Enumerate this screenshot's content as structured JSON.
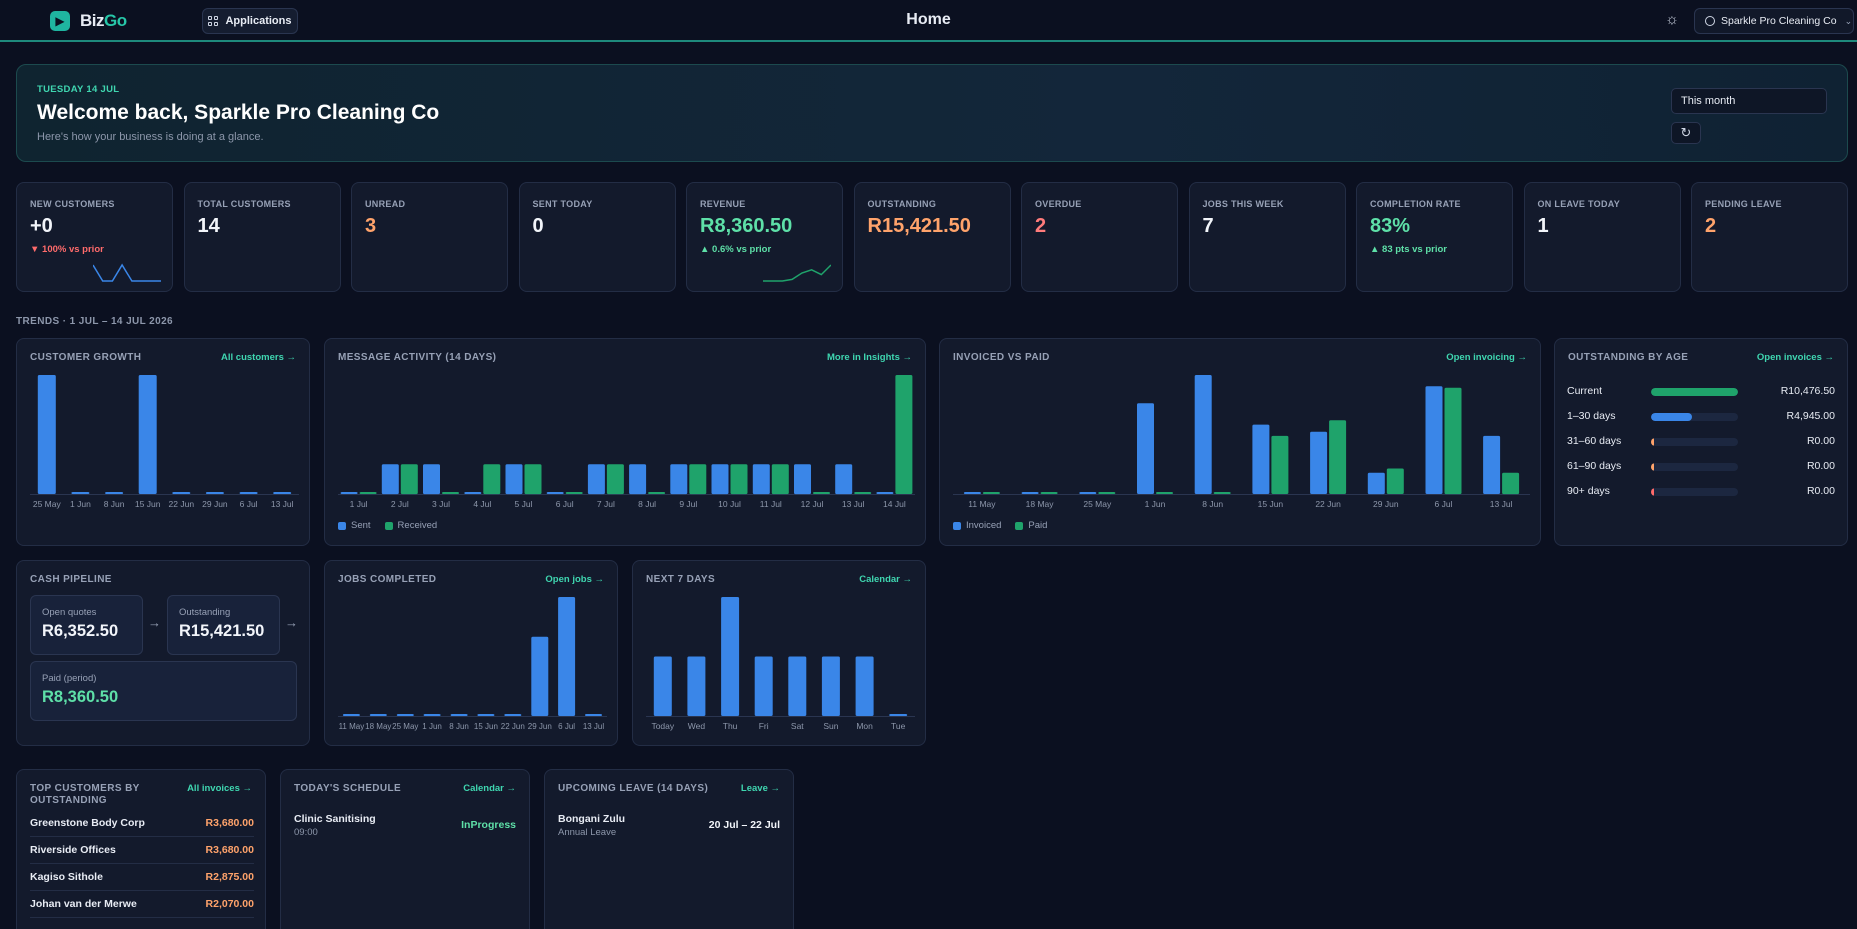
{
  "app": {
    "brand_a": "Biz",
    "brand_b": "Go",
    "apps_label": "Applications",
    "title": "Home",
    "user_label": "Sparkle Pro Cleaning Co"
  },
  "hero": {
    "date": "TUESDAY 14 JUL",
    "title": "Welcome back, Sparkle Pro Cleaning Co",
    "subtitle": "Here's how your business is doing at a glance.",
    "period": "This month"
  },
  "colors": {
    "accent": "#3fd6b0",
    "blue": "#3a86e8",
    "green": "#1fa36b",
    "orange": "#ffa36b",
    "positive": "#5ee0a8",
    "negative": "#ff6b6b"
  },
  "kpis": [
    {
      "label": "NEW CUSTOMERS",
      "value": "+0",
      "delta": "▼ 100% vs prior",
      "tone": "white",
      "delta_tone": "negative",
      "spark": [
        1,
        0,
        0,
        1,
        0,
        0,
        0,
        0
      ]
    },
    {
      "label": "TOTAL CUSTOMERS",
      "value": "14",
      "tone": "white"
    },
    {
      "label": "UNREAD",
      "value": "3",
      "tone": "orange"
    },
    {
      "label": "SENT TODAY",
      "value": "0",
      "tone": "white"
    },
    {
      "label": "REVENUE",
      "value": "R8,360.50",
      "delta": "▲ 0.6% vs prior",
      "tone": "green",
      "delta_tone": "positive",
      "spark": [
        0,
        0,
        0,
        0.1,
        0.5,
        0.7,
        0.4,
        1
      ]
    },
    {
      "label": "OUTSTANDING",
      "value": "R15,421.50",
      "tone": "orange"
    },
    {
      "label": "OVERDUE",
      "value": "2",
      "tone": "red"
    },
    {
      "label": "JOBS THIS WEEK",
      "value": "7",
      "tone": "white"
    },
    {
      "label": "COMPLETION RATE",
      "value": "83%",
      "delta": "▲ 83 pts vs prior",
      "tone": "green",
      "delta_tone": "positive"
    },
    {
      "label": "ON LEAVE TODAY",
      "value": "1",
      "tone": "white"
    },
    {
      "label": "PENDING LEAVE",
      "value": "2",
      "tone": "orange"
    }
  ],
  "trends_label": "TRENDS · 1 JUL – 14 JUL 2026",
  "customer_growth": {
    "title": "CUSTOMER GROWTH",
    "link": "All customers →"
  },
  "message_activity": {
    "title": "MESSAGE ACTIVITY (14 DAYS)",
    "link": "More in Insights →",
    "legend_a": "Sent",
    "legend_b": "Received"
  },
  "invoiced_paid": {
    "title": "INVOICED VS PAID",
    "link": "Open invoicing →",
    "legend_a": "Invoiced",
    "legend_b": "Paid"
  },
  "outstanding_age": {
    "title": "OUTSTANDING BY AGE",
    "link": "Open invoices →",
    "rows": [
      {
        "label": "Current",
        "value": "R10,476.50",
        "share": 1.0,
        "color": "#1fa36b"
      },
      {
        "label": "1–30 days",
        "value": "R4,945.00",
        "share": 0.47,
        "color": "#3a86e8"
      },
      {
        "label": "31–60 days",
        "value": "R0.00",
        "share": 0.0,
        "color": "#ffa36b"
      },
      {
        "label": "61–90 days",
        "value": "R0.00",
        "share": 0.0,
        "color": "#ffa36b"
      },
      {
        "label": "90+ days",
        "value": "R0.00",
        "share": 0.0,
        "color": "#ff6b6b"
      }
    ]
  },
  "cash_pipeline": {
    "title": "CASH PIPELINE",
    "open_label": "Open quotes",
    "open_value": "R6,352.50",
    "out_label": "Outstanding",
    "out_value": "R15,421.50",
    "paid_label": "Paid (period)",
    "paid_value": "R8,360.50"
  },
  "jobs_completed": {
    "title": "JOBS COMPLETED",
    "link": "Open jobs →"
  },
  "next_7_days": {
    "title": "NEXT 7 DAYS",
    "link": "Calendar →"
  },
  "top_customers": {
    "title_1": "TOP CUSTOMERS BY",
    "title_2": "OUTSTANDING",
    "link": "All invoices →",
    "rows": [
      {
        "name": "Greenstone Body Corp",
        "amount": "R3,680.00"
      },
      {
        "name": "Riverside Offices",
        "amount": "R3,680.00"
      },
      {
        "name": "Kagiso Sithole",
        "amount": "R2,875.00"
      },
      {
        "name": "Johan van der Merwe",
        "amount": "R2,070.00"
      }
    ]
  },
  "schedule": {
    "title": "TODAY'S SCHEDULE",
    "link": "Calendar →",
    "item_name": "Clinic Sanitising",
    "item_time": "09:00",
    "item_status": "InProgress"
  },
  "leave": {
    "title": "UPCOMING LEAVE (14 DAYS)",
    "link": "Leave →",
    "item_name": "Bongani Zulu",
    "item_type": "Annual Leave",
    "item_dates": "20 Jul – 22 Jul"
  },
  "chart_data": [
    {
      "type": "bar",
      "id": "customer-growth",
      "categories": [
        "25 May",
        "1 Jun",
        "8 Jun",
        "15 Jun",
        "22 Jun",
        "29 Jun",
        "6 Jul",
        "13 Jul"
      ],
      "series": [
        {
          "values": [
            1,
            0,
            0,
            1,
            0,
            0,
            0,
            0
          ]
        }
      ],
      "ylim": [
        0,
        1
      ]
    },
    {
      "type": "bar",
      "id": "message-activity",
      "categories": [
        "1 Jul",
        "2 Jul",
        "3 Jul",
        "4 Jul",
        "5 Jul",
        "6 Jul",
        "7 Jul",
        "8 Jul",
        "9 Jul",
        "10 Jul",
        "11 Jul",
        "12 Jul",
        "13 Jul",
        "14 Jul"
      ],
      "series": [
        {
          "name": "Sent",
          "values": [
            0,
            1,
            1,
            0,
            1,
            0,
            1,
            1,
            1,
            1,
            1,
            1,
            1,
            0
          ]
        },
        {
          "name": "Received",
          "values": [
            0,
            1,
            0,
            1,
            1,
            0,
            1,
            0,
            1,
            1,
            1,
            0,
            0,
            4
          ]
        }
      ],
      "ylim": [
        0,
        4
      ]
    },
    {
      "type": "bar",
      "id": "invoiced-paid",
      "categories": [
        "11 May",
        "18 May",
        "25 May",
        "1 Jun",
        "8 Jun",
        "15 Jun",
        "22 Jun",
        "29 Jun",
        "6 Jul",
        "13 Jul"
      ],
      "series": [
        {
          "name": "Invoiced",
          "values": [
            0,
            0,
            0,
            3200,
            4200,
            2450,
            2200,
            750,
            3800,
            2050
          ]
        },
        {
          "name": "Paid",
          "values": [
            0,
            0,
            0,
            0,
            0,
            2050,
            2600,
            900,
            3750,
            750
          ]
        }
      ],
      "ylim": [
        0,
        4200
      ]
    },
    {
      "type": "bar",
      "id": "jobs-completed",
      "categories": [
        "11 May",
        "18 May",
        "25 May",
        "1 Jun",
        "8 Jun",
        "15 Jun",
        "22 Jun",
        "29 Jun",
        "6 Jul",
        "13 Jul"
      ],
      "series": [
        {
          "values": [
            0,
            0,
            0,
            0,
            0,
            0,
            0,
            4,
            6,
            0
          ]
        }
      ],
      "ylim": [
        0,
        6
      ]
    },
    {
      "type": "bar",
      "id": "next-7-days",
      "categories": [
        "Today",
        "Wed",
        "Thu",
        "Fri",
        "Sat",
        "Sun",
        "Mon",
        "Tue"
      ],
      "series": [
        {
          "values": [
            1,
            1,
            2,
            1,
            1,
            1,
            1,
            0
          ]
        }
      ],
      "ylim": [
        0,
        2
      ]
    }
  ]
}
